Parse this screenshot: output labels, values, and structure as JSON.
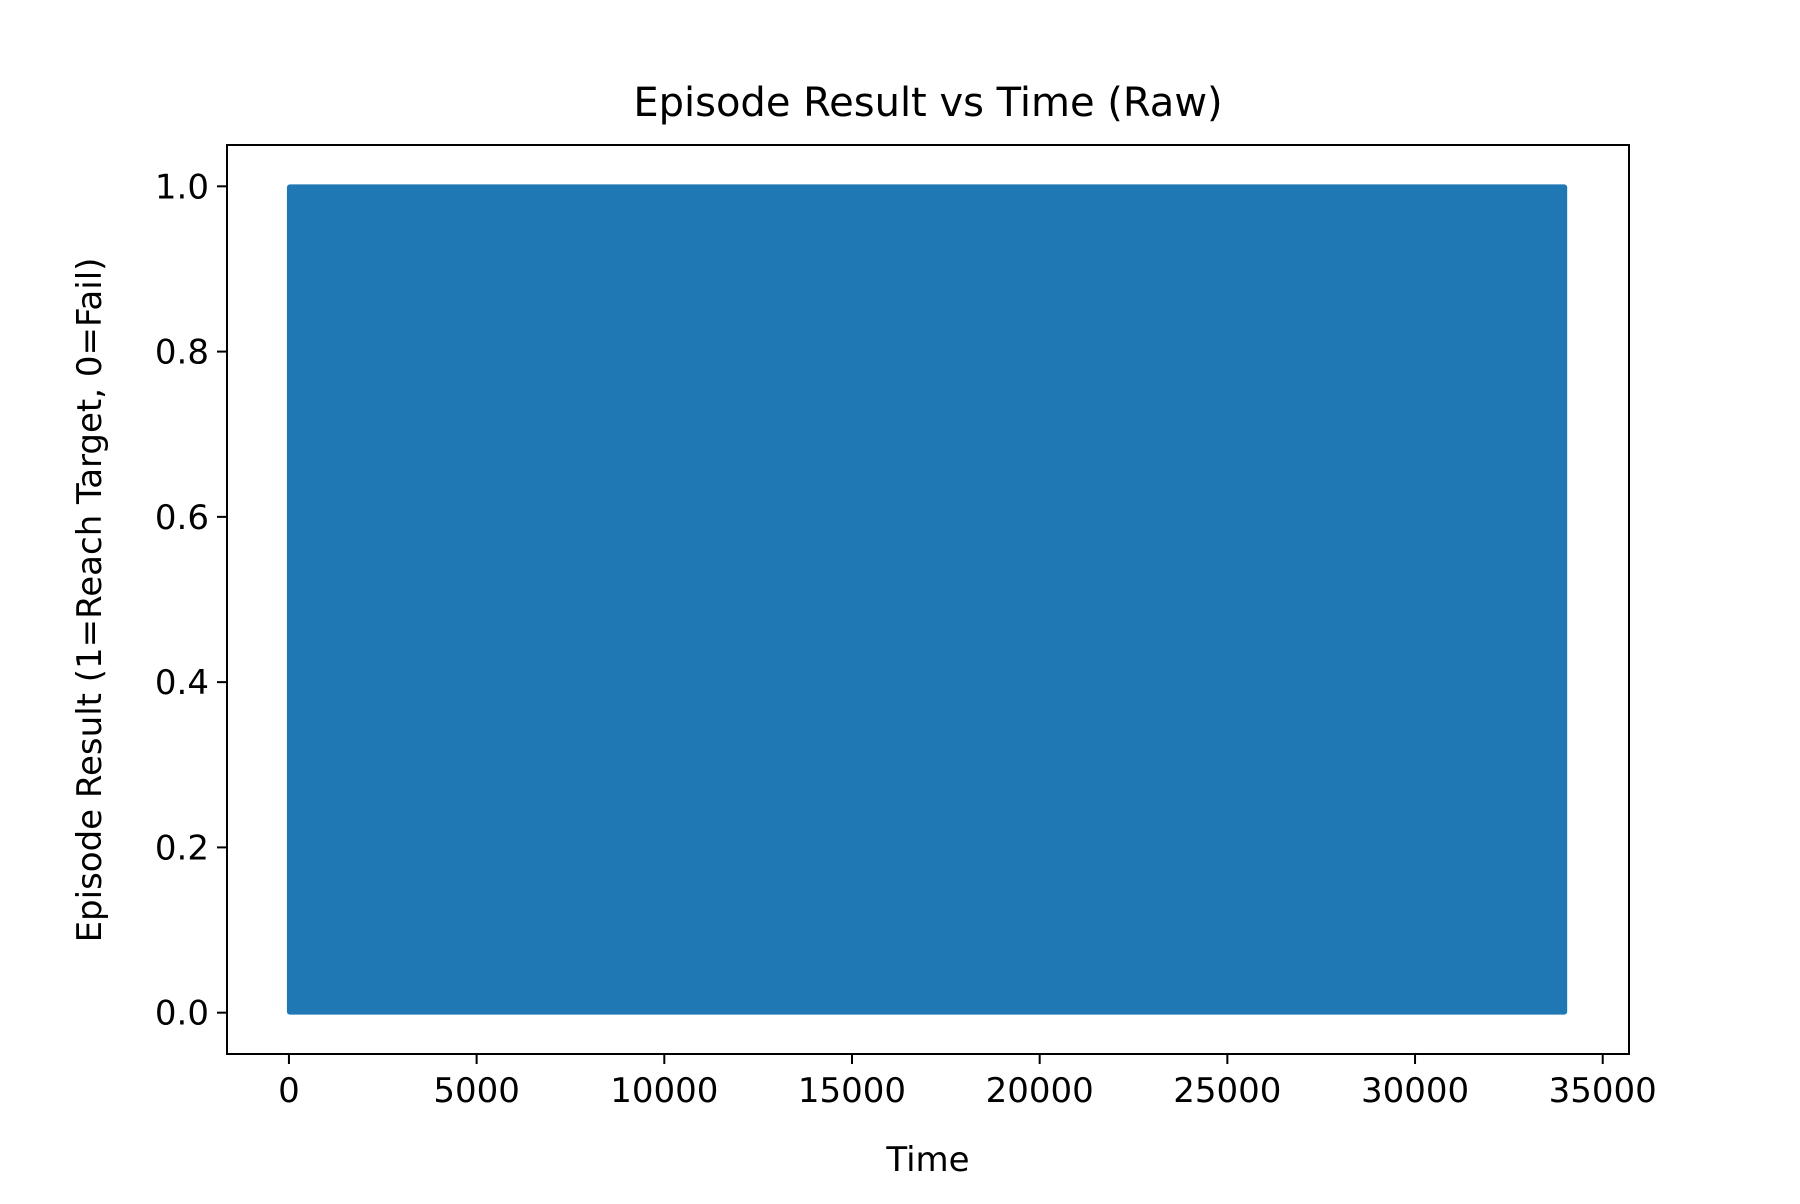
{
  "chart_data": {
    "type": "line",
    "title": "Episode Result vs Time (Raw)",
    "xlabel": "Time",
    "ylabel": "Episode Result (1=Reach Target, 0=Fail)",
    "xlim": [
      -1650,
      35700
    ],
    "ylim": [
      -0.05,
      1.05
    ],
    "xticks": [
      0,
      5000,
      10000,
      15000,
      20000,
      25000,
      30000,
      35000
    ],
    "xtick_labels": [
      "0",
      "5000",
      "10000",
      "15000",
      "20000",
      "25000",
      "30000",
      "35000"
    ],
    "yticks": [
      0.0,
      0.2,
      0.4,
      0.6,
      0.8,
      1.0
    ],
    "ytick_labels": [
      "0.0",
      "0.2",
      "0.4",
      "0.6",
      "0.8",
      "1.0"
    ],
    "grid": false,
    "series": [
      {
        "color": "#1f77b4",
        "x_range": [
          0,
          34000
        ],
        "y_values": [
          0,
          1
        ],
        "pattern": "oscillates between 0 and 1 across the whole time range"
      }
    ]
  }
}
